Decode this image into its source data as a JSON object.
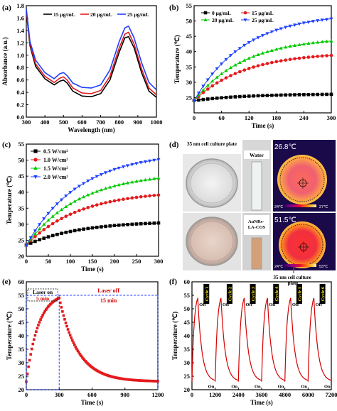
{
  "panels": [
    "(a)",
    "(b)",
    "(c)",
    "(d)",
    "(e)",
    "(f)"
  ],
  "chart_data": [
    {
      "id": "a",
      "type": "line",
      "xlabel": "Wavelength (nm)",
      "ylabel": "Absorbance (a.u.)",
      "xlim": [
        300,
        1000
      ],
      "ylim": [
        0,
        1.8
      ],
      "xticks": [
        300,
        400,
        500,
        600,
        700,
        800,
        900,
        1000
      ],
      "yticks": [
        0,
        0.2,
        0.4,
        0.6,
        0.8,
        1.0,
        1.2,
        1.4,
        1.6,
        1.8
      ],
      "legend": "top",
      "series": [
        {
          "name": "15 μg/mL",
          "color": "#000000",
          "x": [
            300,
            320,
            350,
            400,
            450,
            480,
            500,
            520,
            550,
            600,
            650,
            700,
            750,
            800,
            830,
            850,
            880,
            920,
            960,
            1000
          ],
          "y": [
            1.7,
            1.15,
            0.82,
            0.62,
            0.52,
            0.58,
            0.6,
            0.55,
            0.42,
            0.34,
            0.33,
            0.38,
            0.6,
            1.05,
            1.28,
            1.3,
            1.12,
            0.72,
            0.42,
            0.32
          ]
        },
        {
          "name": "20 μg/mL",
          "color": "#e41a1c",
          "x": [
            300,
            320,
            350,
            400,
            450,
            480,
            500,
            520,
            550,
            600,
            650,
            700,
            750,
            800,
            830,
            850,
            880,
            920,
            960,
            1000
          ],
          "y": [
            1.72,
            1.18,
            0.86,
            0.66,
            0.56,
            0.63,
            0.65,
            0.6,
            0.47,
            0.39,
            0.38,
            0.43,
            0.66,
            1.12,
            1.34,
            1.37,
            1.18,
            0.78,
            0.47,
            0.36
          ]
        },
        {
          "name": "25 μg/mL",
          "color": "#1f3fff",
          "x": [
            300,
            320,
            350,
            400,
            450,
            480,
            500,
            520,
            550,
            600,
            650,
            700,
            750,
            800,
            830,
            850,
            880,
            920,
            960,
            1000
          ],
          "y": [
            1.75,
            1.22,
            0.92,
            0.72,
            0.62,
            0.7,
            0.72,
            0.67,
            0.55,
            0.48,
            0.47,
            0.52,
            0.76,
            1.22,
            1.44,
            1.47,
            1.28,
            0.88,
            0.56,
            0.44
          ]
        }
      ]
    },
    {
      "id": "b",
      "type": "line",
      "xlabel": "Time (s)",
      "ylabel": "Temperature (℃)",
      "xlim": [
        0,
        300
      ],
      "ylim": [
        20,
        55
      ],
      "xticks": [
        0,
        60,
        120,
        180,
        240,
        300
      ],
      "yticks": [
        25,
        30,
        35,
        40,
        45,
        50,
        55
      ],
      "legend": "top",
      "curve": {
        "start": 24,
        "tau": 110,
        "n": 30
      },
      "series": [
        {
          "name": "0 μg/mL",
          "color": "#000000",
          "marker": "square",
          "plateau": 26.2
        },
        {
          "name": "15 μg/mL",
          "color": "#e41a1c",
          "marker": "circle",
          "plateau": 39.8
        },
        {
          "name": "20 μg/mL",
          "color": "#00c800",
          "marker": "triangle-up",
          "plateau": 44.8
        },
        {
          "name": "25 μg/mL",
          "color": "#1f3fff",
          "marker": "triangle-down",
          "plateau": 52.6
        }
      ]
    },
    {
      "id": "c",
      "type": "line",
      "xlabel": "Time (s)",
      "ylabel": "Temperature (℃)",
      "xlim": [
        0,
        300
      ],
      "ylim": [
        20,
        55
      ],
      "xticks": [
        0,
        50,
        100,
        150,
        200,
        250,
        300
      ],
      "yticks": [
        20,
        25,
        30,
        35,
        40,
        45,
        50,
        55
      ],
      "legend": "top-left",
      "curve": {
        "start": 23.5,
        "tau": 120,
        "n": 30
      },
      "series": [
        {
          "name": "0.5 W/cm²",
          "color": "#000000",
          "marker": "square",
          "plateau": 31.0
        },
        {
          "name": "1.0 W/cm²",
          "color": "#e41a1c",
          "marker": "circle",
          "plateau": 40.5
        },
        {
          "name": "1.5 W/cm²",
          "color": "#00c800",
          "marker": "triangle-up",
          "plateau": 46.2
        },
        {
          "name": "2.0 W/cm²",
          "color": "#1f3fff",
          "marker": "triangle-down",
          "plateau": 52.6
        }
      ]
    },
    {
      "id": "e",
      "type": "scatter",
      "xlabel": "Time (s)",
      "ylabel": "Temperature (℃)",
      "xlim": [
        0,
        1200
      ],
      "ylim": [
        20,
        60
      ],
      "xticks": [
        0,
        300,
        600,
        900,
        1200
      ],
      "yticks": [
        20,
        25,
        30,
        35,
        40,
        45,
        50,
        55,
        60
      ],
      "laser_on_end": 300,
      "peak": 54,
      "baseline": 23,
      "series": [
        {
          "name": "",
          "color": "#e41a1c"
        }
      ],
      "annotations": {
        "laser_on": "Laser on",
        "on_time": "5 min",
        "laser_off": "Laser off",
        "off_time": "15 min"
      }
    },
    {
      "id": "f",
      "type": "line",
      "xlabel": "Time (s)",
      "ylabel": "Temperature (℃)",
      "xlim": [
        0,
        7200
      ],
      "ylim": [
        20,
        60
      ],
      "xticks": [
        0,
        1200,
        2400,
        3600,
        4800,
        6000,
        7200
      ],
      "yticks": [
        20,
        25,
        30,
        35,
        40,
        45,
        50,
        55,
        60
      ],
      "cycles": 6,
      "cycle_labels": [
        "Cycle 1",
        "Cycle 2",
        "Cycle 3",
        "Cycle 4",
        "Cycle 5",
        "Cycle 6"
      ],
      "on_label": "On",
      "off_label": "Off",
      "peak": 54,
      "baseline": 23,
      "series": [
        {
          "name": "",
          "color": "#d40000"
        }
      ]
    }
  ],
  "panel_d": {
    "plate_title": "35 nm cell culture plate",
    "water": "Water",
    "sample": "AuNRs-LA-COS",
    "thermo_top": {
      "temp": "26.8℃",
      "min": "24℃",
      "max": "27℃"
    },
    "thermo_bottom": {
      "temp": "51.5℃",
      "min": "24℃",
      "max": "53℃"
    },
    "caption": "35 nm cell culture plate"
  }
}
